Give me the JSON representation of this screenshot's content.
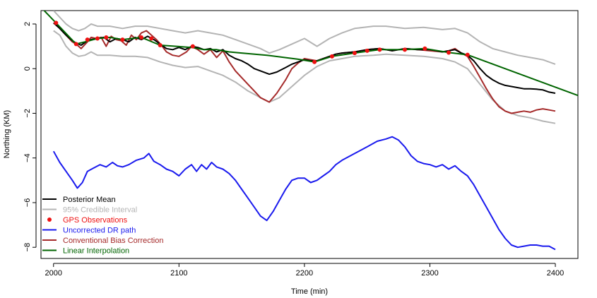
{
  "chart_data": {
    "type": "line",
    "xlabel": "Time (min)",
    "ylabel": "Northing (KM)",
    "xlim": [
      1990,
      2418
    ],
    "ylim": [
      -8.5,
      2.6
    ],
    "xticks": [
      2000,
      2100,
      2200,
      2300,
      2400
    ],
    "yticks": [
      -8,
      -6,
      -4,
      -2,
      0,
      2
    ],
    "ytick_labels": [
      "−8",
      "−6",
      "−4",
      "−2",
      "0",
      "2"
    ],
    "grid": false,
    "legend_position": "bottom-left",
    "legend": [
      {
        "label": "Posterior Mean",
        "color": "#000000",
        "kind": "line"
      },
      {
        "label": "95% Credible Interval",
        "color": "#b4b4b4",
        "kind": "line"
      },
      {
        "label": "GPS Observations",
        "color": "#ee1111",
        "kind": "point"
      },
      {
        "label": "Uncorrected DR path",
        "color": "#1a1aee",
        "kind": "line"
      },
      {
        "label": "Conventional Bias Correction",
        "color": "#a52a2a",
        "kind": "line"
      },
      {
        "label": "Linear Interpolation",
        "color": "#006400",
        "kind": "line"
      }
    ],
    "series": [
      {
        "name": "95% Credible Interval",
        "color": "#b4b4b4",
        "x": [
          2000,
          2005,
          2010,
          2015,
          2020,
          2025,
          2030,
          2035,
          2045,
          2055,
          2065,
          2075,
          2085,
          2095,
          2105,
          2115,
          2125,
          2135,
          2145,
          2155,
          2165,
          2172,
          2180,
          2190,
          2200,
          2210,
          2220,
          2230,
          2240,
          2255,
          2265,
          2280,
          2295,
          2310,
          2320,
          2330,
          2340,
          2350,
          2360,
          2370,
          2380,
          2390,
          2400
        ],
        "y": [
          2.6,
          2.3,
          2.0,
          1.8,
          1.7,
          1.8,
          2.0,
          1.9,
          1.9,
          1.8,
          1.9,
          1.9,
          1.8,
          1.7,
          1.6,
          1.7,
          1.6,
          1.5,
          1.3,
          1.1,
          0.9,
          0.7,
          0.85,
          1.1,
          1.35,
          1.0,
          1.35,
          1.6,
          1.8,
          1.9,
          1.9,
          1.8,
          1.85,
          1.75,
          1.8,
          1.6,
          1.2,
          0.9,
          0.75,
          0.6,
          0.5,
          0.4,
          0.2
        ]
      },
      {
        "name": "95% Credible Interval",
        "color": "#b4b4b4",
        "x": [
          2000,
          2005,
          2010,
          2015,
          2020,
          2025,
          2030,
          2035,
          2045,
          2055,
          2065,
          2075,
          2085,
          2095,
          2105,
          2115,
          2125,
          2135,
          2145,
          2155,
          2165,
          2172,
          2180,
          2190,
          2200,
          2210,
          2220,
          2230,
          2240,
          2255,
          2265,
          2280,
          2295,
          2310,
          2320,
          2330,
          2340,
          2350,
          2360,
          2370,
          2380,
          2390,
          2400
        ],
        "y": [
          1.7,
          1.5,
          1.0,
          0.7,
          0.55,
          0.6,
          0.75,
          0.6,
          0.6,
          0.55,
          0.55,
          0.5,
          0.3,
          0.15,
          0.05,
          0.1,
          -0.1,
          -0.3,
          -0.6,
          -1.0,
          -1.3,
          -1.5,
          -1.3,
          -0.8,
          -0.3,
          0.1,
          0.35,
          0.45,
          0.55,
          0.6,
          0.65,
          0.6,
          0.55,
          0.45,
          0.3,
          0.0,
          -0.7,
          -1.4,
          -1.9,
          -2.1,
          -2.2,
          -2.35,
          -2.45
        ]
      },
      {
        "name": "Uncorrected DR path",
        "color": "#1a1aee",
        "x": [
          2000,
          2005,
          2010,
          2015,
          2019,
          2023,
          2027,
          2032,
          2037,
          2042,
          2047,
          2051,
          2055,
          2060,
          2066,
          2072,
          2076,
          2080,
          2085,
          2090,
          2095,
          2100,
          2105,
          2110,
          2114,
          2118,
          2122,
          2126,
          2130,
          2135,
          2140,
          2145,
          2150,
          2155,
          2160,
          2165,
          2170,
          2175,
          2180,
          2185,
          2190,
          2195,
          2200,
          2205,
          2210,
          2215,
          2220,
          2225,
          2230,
          2240,
          2250,
          2258,
          2265,
          2270,
          2275,
          2280,
          2285,
          2290,
          2295,
          2300,
          2305,
          2310,
          2315,
          2320,
          2325,
          2330,
          2335,
          2340,
          2345,
          2350,
          2355,
          2360,
          2365,
          2370,
          2375,
          2380,
          2385,
          2390,
          2395,
          2400
        ],
        "y": [
          -3.7,
          -4.2,
          -4.6,
          -5.0,
          -5.35,
          -5.1,
          -4.6,
          -4.45,
          -4.3,
          -4.4,
          -4.2,
          -4.35,
          -4.4,
          -4.3,
          -4.1,
          -4.0,
          -3.8,
          -4.15,
          -4.3,
          -4.5,
          -4.6,
          -4.8,
          -4.5,
          -4.3,
          -4.6,
          -4.3,
          -4.5,
          -4.2,
          -4.4,
          -4.5,
          -4.7,
          -5.0,
          -5.4,
          -5.8,
          -6.2,
          -6.6,
          -6.8,
          -6.4,
          -5.9,
          -5.4,
          -5.0,
          -4.9,
          -4.9,
          -5.1,
          -5.0,
          -4.8,
          -4.6,
          -4.3,
          -4.1,
          -3.8,
          -3.5,
          -3.25,
          -3.15,
          -3.05,
          -3.2,
          -3.5,
          -3.9,
          -4.15,
          -4.25,
          -4.3,
          -4.4,
          -4.3,
          -4.5,
          -4.35,
          -4.6,
          -4.8,
          -5.2,
          -5.7,
          -6.2,
          -6.7,
          -7.2,
          -7.6,
          -7.9,
          -8.0,
          -7.95,
          -7.9,
          -7.9,
          -7.95,
          -7.95,
          -8.1
        ]
      },
      {
        "name": "Conventional Bias Correction",
        "color": "#a52a2a",
        "x": [
          2000,
          2005,
          2010,
          2015,
          2018,
          2022,
          2027,
          2030,
          2034,
          2038,
          2042,
          2046,
          2050,
          2054,
          2058,
          2062,
          2066,
          2070,
          2074,
          2078,
          2082,
          2086,
          2090,
          2095,
          2100,
          2106,
          2110,
          2115,
          2120,
          2125,
          2130,
          2135,
          2140,
          2145,
          2150,
          2155,
          2160,
          2165,
          2172,
          2178,
          2185,
          2190,
          2195,
          2200,
          2205,
          2210,
          2215,
          2220,
          2225,
          2230,
          2240,
          2250,
          2260,
          2270,
          2280,
          2290,
          2300,
          2310,
          2315,
          2320,
          2325,
          2330,
          2335,
          2340,
          2345,
          2350,
          2355,
          2360,
          2365,
          2370,
          2375,
          2380,
          2385,
          2390,
          2395,
          2400
        ],
        "y": [
          2.05,
          1.8,
          1.5,
          1.2,
          1.1,
          0.9,
          1.2,
          1.4,
          1.35,
          1.4,
          1.0,
          1.45,
          1.3,
          1.25,
          1.05,
          1.5,
          1.3,
          1.6,
          1.7,
          1.5,
          1.3,
          1.05,
          0.75,
          0.6,
          0.55,
          0.75,
          1.0,
          0.85,
          0.65,
          0.85,
          0.5,
          0.8,
          0.3,
          -0.1,
          -0.4,
          -0.7,
          -1.0,
          -1.3,
          -1.5,
          -1.1,
          -0.5,
          0.0,
          0.25,
          0.45,
          0.4,
          0.35,
          0.45,
          0.55,
          0.65,
          0.7,
          0.75,
          0.85,
          0.9,
          0.8,
          0.9,
          0.85,
          0.8,
          0.75,
          0.8,
          0.9,
          0.7,
          0.55,
          0.1,
          -0.4,
          -0.9,
          -1.35,
          -1.7,
          -1.9,
          -2.0,
          -1.95,
          -1.9,
          -1.95,
          -1.85,
          -1.8,
          -1.85,
          -1.9
        ]
      },
      {
        "name": "Posterior Mean",
        "color": "#000000",
        "x": [
          2000,
          2005,
          2010,
          2015,
          2018,
          2022,
          2027,
          2030,
          2035,
          2040,
          2045,
          2050,
          2055,
          2060,
          2065,
          2070,
          2075,
          2080,
          2085,
          2090,
          2095,
          2100,
          2105,
          2110,
          2115,
          2120,
          2125,
          2130,
          2135,
          2140,
          2145,
          2150,
          2155,
          2160,
          2165,
          2172,
          2178,
          2185,
          2190,
          2195,
          2200,
          2205,
          2210,
          2215,
          2220,
          2225,
          2230,
          2240,
          2250,
          2260,
          2270,
          2280,
          2290,
          2300,
          2310,
          2315,
          2320,
          2325,
          2330,
          2335,
          2340,
          2345,
          2350,
          2355,
          2360,
          2365,
          2370,
          2375,
          2380,
          2385,
          2390,
          2395,
          2400
        ],
        "y": [
          2.05,
          1.8,
          1.5,
          1.25,
          1.15,
          1.05,
          1.25,
          1.3,
          1.35,
          1.4,
          1.2,
          1.35,
          1.3,
          1.2,
          1.4,
          1.3,
          1.45,
          1.3,
          1.1,
          0.9,
          0.85,
          0.95,
          0.85,
          1.0,
          0.95,
          0.85,
          0.9,
          0.75,
          0.85,
          0.6,
          0.45,
          0.35,
          0.2,
          0.0,
          -0.1,
          -0.25,
          -0.15,
          0.05,
          0.2,
          0.3,
          0.4,
          0.35,
          0.35,
          0.45,
          0.55,
          0.65,
          0.7,
          0.75,
          0.85,
          0.9,
          0.8,
          0.9,
          0.85,
          0.85,
          0.75,
          0.8,
          0.85,
          0.7,
          0.6,
          0.35,
          0.0,
          -0.3,
          -0.5,
          -0.65,
          -0.75,
          -0.8,
          -0.85,
          -0.9,
          -0.9,
          -0.92,
          -0.95,
          -1.05,
          -1.1
        ]
      },
      {
        "name": "Linear Interpolation",
        "color": "#006400",
        "x": [
          1990,
          2002,
          2018,
          2025,
          2035,
          2045,
          2055,
          2070,
          2085,
          2110,
          2120,
          2130,
          2140,
          2150,
          2170,
          2195,
          2208,
          2222,
          2240,
          2260,
          2280,
          2296,
          2315,
          2330,
          2418
        ],
        "y": [
          2.75,
          2.05,
          1.1,
          1.2,
          1.35,
          1.4,
          1.3,
          1.4,
          1.05,
          0.95,
          0.85,
          0.85,
          0.75,
          0.7,
          0.6,
          0.42,
          0.3,
          0.55,
          0.7,
          0.85,
          0.85,
          0.9,
          0.72,
          0.62,
          -1.2
        ]
      }
    ],
    "gps_observations": {
      "name": "GPS Observations",
      "color": "#ee1111",
      "x": [
        2002,
        2018,
        2027,
        2035,
        2042,
        2055,
        2070,
        2078,
        2085,
        2111,
        2208,
        2222,
        2240,
        2250,
        2260,
        2280,
        2296,
        2315,
        2330
      ],
      "y": [
        2.05,
        1.1,
        1.3,
        1.35,
        1.4,
        1.3,
        1.4,
        1.35,
        1.05,
        1.0,
        0.3,
        0.55,
        0.7,
        0.8,
        0.85,
        0.85,
        0.9,
        0.72,
        0.62
      ]
    }
  }
}
